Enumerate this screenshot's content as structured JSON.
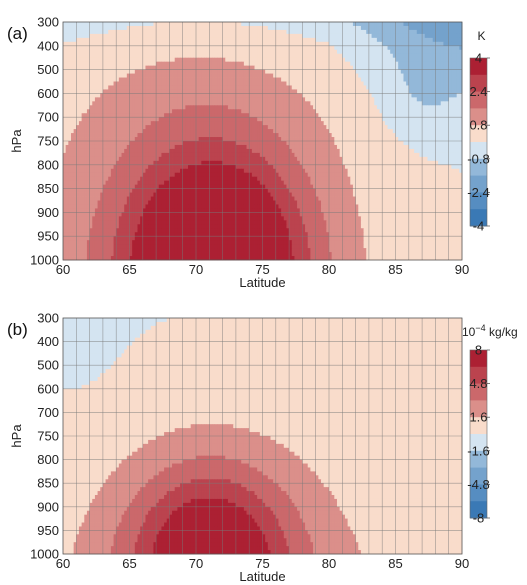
{
  "chart_data": [
    {
      "type": "heatmap",
      "panel_label": "(a)",
      "xlabel": "Latitude",
      "ylabel": "hPa",
      "x_ticks": [
        "60",
        "65",
        "70",
        "75",
        "80",
        "85",
        "90"
      ],
      "y_ticks": [
        "300",
        "400",
        "500",
        "600",
        "700",
        "750",
        "800",
        "850",
        "900",
        "950",
        "1000"
      ],
      "xlim": [
        60,
        90
      ],
      "grid": true,
      "colorbar": {
        "unit": "K",
        "ticks": [
          "4",
          "2.4",
          "0.8",
          "-0.8",
          "-2.4",
          "-4"
        ],
        "range": [
          -4,
          4
        ],
        "levels": 10
      },
      "field": {
        "center_latitude": 71.5,
        "max_value": 4.4,
        "description_values": {
          "near_surface_max": 4.4,
          "mid_level_600hPa": 1.2,
          "top_300hPa_polar": -1.2
        }
      },
      "colors": {
        "neg_max": "#2c6fb0",
        "neutral": "#f5f5f5",
        "pos_max": "#a50f25"
      }
    },
    {
      "type": "heatmap",
      "panel_label": "(b)",
      "xlabel": "Latitude",
      "ylabel": "hPa",
      "x_ticks": [
        "60",
        "65",
        "70",
        "75",
        "80",
        "85",
        "90"
      ],
      "y_ticks": [
        "300",
        "400",
        "500",
        "600",
        "700",
        "750",
        "800",
        "850",
        "900",
        "950",
        "1000"
      ],
      "xlim": [
        60,
        90
      ],
      "grid": true,
      "colorbar": {
        "unit_prefix": "10",
        "unit_exp": "−4",
        "unit_suffix": " kg/kg",
        "ticks": [
          "8",
          "4.8",
          "1.6",
          "-1.6",
          "-4.8",
          "-8"
        ],
        "range": [
          -8,
          8
        ],
        "levels": 10
      },
      "field": {
        "center_latitude": 71.0,
        "max_value": 7.0,
        "description_values": {
          "near_surface_max": 7.0,
          "level_600hPa": 0.6,
          "top_300hPa_west": -0.8
        }
      },
      "colors": {
        "neg_max": "#2c6fb0",
        "neutral": "#f5f5f5",
        "pos_max": "#a50f25"
      }
    }
  ]
}
